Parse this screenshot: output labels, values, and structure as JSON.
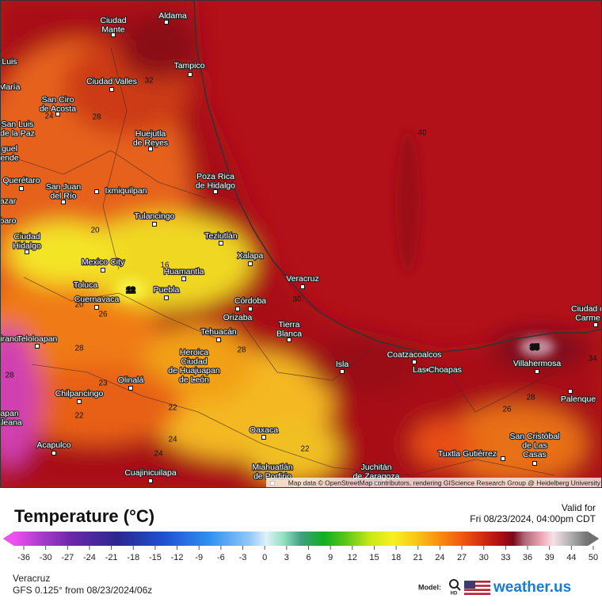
{
  "map": {
    "cities": [
      {
        "lines": [
          "Ciudad",
          "Mante"
        ]
      },
      {
        "lines": [
          "Aldama"
        ]
      },
      {
        "lines": [
          "Tampico"
        ]
      },
      {
        "lines": [
          "Luis"
        ]
      },
      {
        "lines": [
          "María"
        ]
      },
      {
        "lines": [
          "Ciudad Valles"
        ]
      },
      {
        "lines": [
          "San Ciro",
          "de Acosta"
        ]
      },
      {
        "lines": [
          "San Luis",
          "de la Paz"
        ]
      },
      {
        "lines": [
          "Huejutla",
          "de Reyes"
        ]
      },
      {
        "lines": [
          "guel",
          "ende"
        ]
      },
      {
        "lines": [
          "Poza Rica",
          "de Hidalgo"
        ]
      },
      {
        "lines": [
          "Querétaro"
        ]
      },
      {
        "lines": [
          "San Juan",
          "del Río"
        ]
      },
      {
        "lines": [
          "Ixmiquilpan"
        ]
      },
      {
        "lines": [
          "azar"
        ]
      },
      {
        "lines": [
          "Tulancingo"
        ]
      },
      {
        "lines": [
          "baro"
        ]
      },
      {
        "lines": [
          "Ciudad",
          "Hidalgo"
        ]
      },
      {
        "lines": [
          "Teziutlán"
        ]
      },
      {
        "lines": [
          "Xalapa"
        ]
      },
      {
        "lines": [
          "Mexico City"
        ]
      },
      {
        "lines": [
          "Huamantla"
        ]
      },
      {
        "lines": [
          "Veracruz"
        ]
      },
      {
        "lines": [
          "Toluca"
        ]
      },
      {
        "lines": [
          "Puebla"
        ]
      },
      {
        "lines": [
          "Cuernavaca"
        ]
      },
      {
        "lines": [
          "Córdoba"
        ]
      },
      {
        "lines": [
          "Orizaba"
        ]
      },
      {
        "lines": [
          "Tierra",
          "Blanca"
        ]
      },
      {
        "lines": [
          "Tehuacán"
        ]
      },
      {
        "lines": [
          "Ciudad d",
          "Carme"
        ]
      },
      {
        "lines": [
          "irano"
        ]
      },
      {
        "lines": [
          "Teloloapan"
        ]
      },
      {
        "lines": [
          "Heroica",
          "Ciudad",
          "de Huajuapan",
          "de León"
        ]
      },
      {
        "lines": [
          "Coatzacoalcos"
        ]
      },
      {
        "lines": [
          "Isla"
        ]
      },
      {
        "lines": [
          "Las Choapas"
        ]
      },
      {
        "lines": [
          "Villahermosa"
        ]
      },
      {
        "lines": [
          "Olinalá"
        ]
      },
      {
        "lines": [
          "Palenque"
        ]
      },
      {
        "lines": [
          "Chilpancingo"
        ]
      },
      {
        "lines": [
          "Oaxaca"
        ]
      },
      {
        "lines": [
          "San Cristóbal",
          "de Las",
          "Casas"
        ]
      },
      {
        "lines": [
          "Acapulco"
        ]
      },
      {
        "lines": [
          "Tuxtla Gutiérrez"
        ]
      },
      {
        "lines": [
          "Miahuatlán",
          "de Porfirio"
        ]
      },
      {
        "lines": [
          "Juchitán",
          "de Zaragoza"
        ]
      },
      {
        "lines": [
          "Cuajinicuilapa"
        ]
      },
      {
        "lines": [
          "apan",
          "aleana"
        ]
      }
    ],
    "isoline_labels": [
      "32",
      "24",
      "28",
      "20",
      "16",
      "12",
      "20",
      "26",
      "28",
      "28",
      "23",
      "22",
      "22",
      "24",
      "22",
      "40",
      "30",
      "28",
      "35",
      "34",
      "26",
      "24",
      "28"
    ],
    "attribution": "Map data © OpenStreetMap contributors, rendering GIScience Research Group @ Heidelberg University"
  },
  "legend": {
    "title": "Temperature (°C)",
    "valid_label": "Valid for",
    "valid_time": "Fri 08/23/2024, 04:00pm CDT",
    "ticks": [
      "-36",
      "-30",
      "-27",
      "-24",
      "-21",
      "-18",
      "-15",
      "-12",
      "-9",
      "-6",
      "-3",
      "0",
      "3",
      "6",
      "9",
      "12",
      "15",
      "18",
      "21",
      "24",
      "27",
      "30",
      "33",
      "36",
      "39",
      "44",
      "50"
    ]
  },
  "footer": {
    "location": "Veracruz",
    "model_run": "GFS 0.125° from  08/23/2024/06z",
    "model_label": "Model:",
    "hd_label": "HD",
    "brand": "weather.us"
  }
}
